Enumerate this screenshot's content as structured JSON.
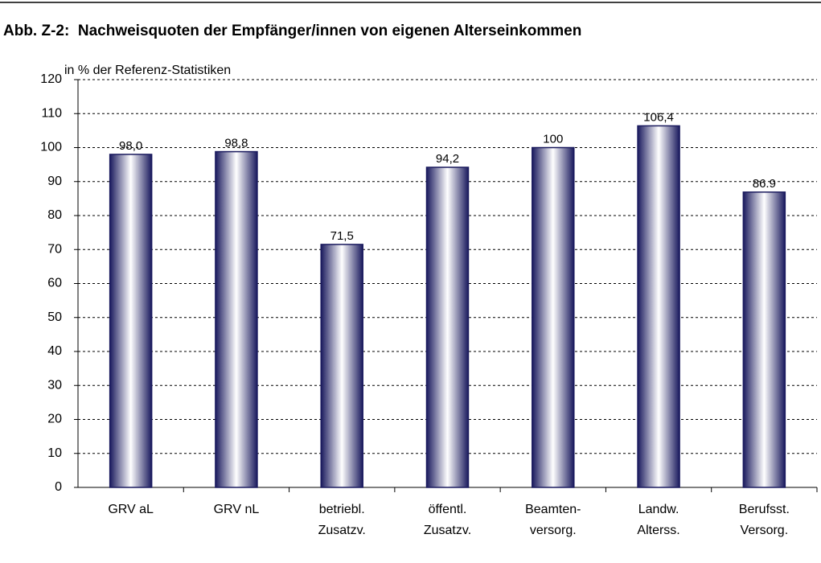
{
  "chart_data": {
    "type": "bar",
    "title": "Abb. Z-2:  Nachweisquoten der Empfänger/innen von eigenen Alterseinkommen",
    "y_label": "in % der Referenz-Statistiken",
    "categories": [
      "GRV aL",
      "GRV nL",
      "betriebl.\nZusatzv.",
      "öffentl.\nZusatzv.",
      "Beamten-\nversorg.",
      "Landw.\nAlterss.",
      "Berufsst.\nVersorg."
    ],
    "values": [
      98.0,
      98.8,
      71.5,
      94.2,
      100,
      106.4,
      86.9
    ],
    "value_labels": [
      "98,0",
      "98,8",
      "71,5",
      "94,2",
      "100",
      "106,4",
      "86.9"
    ],
    "color": "#1a1a5e",
    "ylim": [
      0,
      120
    ],
    "yticks": [
      0,
      10,
      20,
      30,
      40,
      50,
      60,
      70,
      80,
      90,
      100,
      110,
      120
    ],
    "grid": true
  }
}
